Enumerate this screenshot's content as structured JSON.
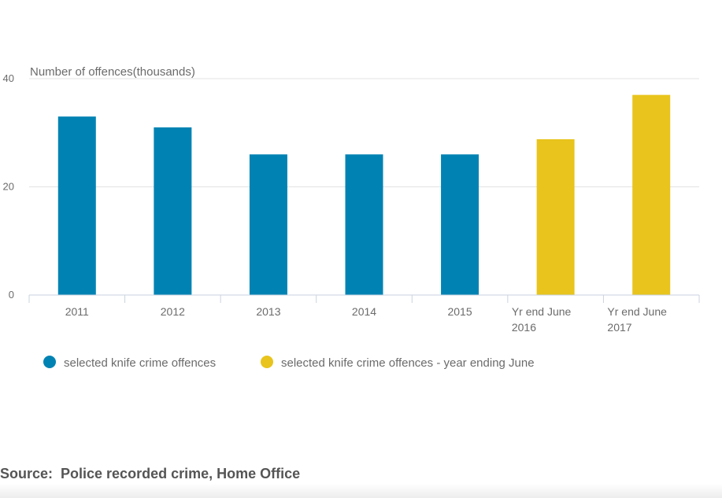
{
  "chart_data": {
    "type": "bar",
    "ylabel": "Number of offences(thousands)",
    "ylim": [
      0,
      40
    ],
    "yticks": [
      "0",
      "20",
      "40"
    ],
    "grid": true,
    "legend_position": "bottom-left",
    "categories": [
      [
        "2011"
      ],
      [
        "2012"
      ],
      [
        "2013"
      ],
      [
        "2014"
      ],
      [
        "2015"
      ],
      [
        "Yr end June",
        "2016"
      ],
      [
        "Yr end June",
        "2017"
      ]
    ],
    "series": [
      {
        "name": "selected knife crime offences",
        "color": "#0083b3",
        "values": [
          33,
          31,
          26,
          26,
          26,
          null,
          null
        ]
      },
      {
        "name": "selected knife crime offences - year ending June",
        "color": "#e8c41c",
        "values": [
          null,
          null,
          null,
          null,
          null,
          28.8,
          37
        ]
      }
    ]
  },
  "source": {
    "text": "Source:  Police recorded crime, Home Office"
  }
}
